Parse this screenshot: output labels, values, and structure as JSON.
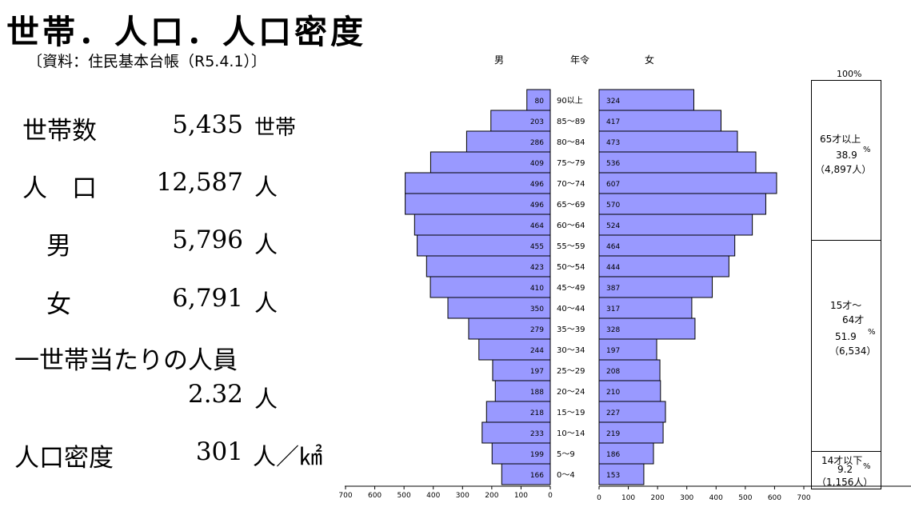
{
  "title": "世帯．人口．人口密度",
  "source": "〔資料：住民基本台帳（R5.4.1）〕",
  "stats": {
    "households": {
      "label": "世帯数",
      "value": "5,435",
      "unit": "世帯"
    },
    "population": {
      "label": "人　口",
      "value": "12,587",
      "unit": "人"
    },
    "male": {
      "label": "男",
      "value": "5,796",
      "unit": "人"
    },
    "female": {
      "label": "女",
      "value": "6,791",
      "unit": "人"
    },
    "per_household": {
      "label": "一世帯当たりの人員",
      "value": "2.32",
      "unit": "人"
    },
    "density": {
      "label": "人口密度",
      "value": "301",
      "unit": "人／㎢"
    }
  },
  "chart_data": {
    "type": "bar",
    "headers": {
      "male": "男",
      "age": "年令",
      "female": "女"
    },
    "categories": [
      "90以上",
      "85～89",
      "80～84",
      "75～79",
      "70～74",
      "65～69",
      "60～64",
      "55～59",
      "50～54",
      "45～49",
      "40～44",
      "35～39",
      "30～34",
      "25～29",
      "20～24",
      "15～19",
      "10～14",
      "5～9",
      "0～4"
    ],
    "series": [
      {
        "name": "男",
        "values": [
          80,
          203,
          286,
          409,
          496,
          496,
          464,
          455,
          423,
          410,
          350,
          279,
          244,
          197,
          188,
          218,
          233,
          199,
          166
        ]
      },
      {
        "name": "女",
        "values": [
          324,
          417,
          473,
          536,
          607,
          570,
          524,
          464,
          444,
          387,
          317,
          328,
          197,
          208,
          210,
          227,
          219,
          186,
          153
        ]
      }
    ],
    "xlim": [
      0,
      700
    ],
    "ticks": [
      0,
      100,
      200,
      300,
      400,
      500,
      600,
      700
    ],
    "bar_color": "#9999ff"
  },
  "age_groups": {
    "header": "100%",
    "elderly": {
      "line1": "65才以上",
      "pct": "38.9",
      "pct_unit": "%",
      "count": "（4,897人）"
    },
    "working": {
      "line1": "15才～",
      "line2": "64才",
      "pct": "51.9",
      "pct_unit": "%",
      "count": "（6,534）"
    },
    "young": {
      "line1": "14才以下",
      "pct": "9.2",
      "pct_unit": "%",
      "count": "（1,156人）"
    }
  }
}
